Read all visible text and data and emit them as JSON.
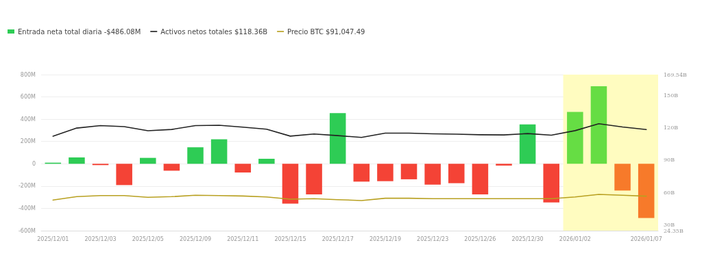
{
  "chart_data": {
    "type": "bar",
    "categories": [
      "2025/12/01",
      null,
      "2025/12/03",
      null,
      "2025/12/05",
      null,
      "2025/12/09",
      null,
      "2025/12/11",
      null,
      "2025/12/15",
      null,
      "2025/12/17",
      null,
      "2025/12/19",
      null,
      "2025/12/23",
      null,
      "2025/12/26",
      null,
      "2025/12/30",
      null,
      "2026/01/02",
      null,
      null,
      "2026/01/07"
    ],
    "series": [
      {
        "name": "Entrada neta total diaria -$486.08M",
        "color": "#2ecc55",
        "values": [
          10,
          57,
          -12,
          -191,
          53,
          -62,
          148,
          219,
          -78,
          45,
          -357,
          -275,
          455,
          -160,
          -156,
          -139,
          -187,
          -174,
          -275,
          -16,
          353,
          -347,
          466,
          695,
          -240,
          -486
        ],
        "colors": [
          "#2ecc55",
          "#2ecc55",
          "#f44336",
          "#f44336",
          "#2ecc55",
          "#f44336",
          "#2ecc55",
          "#2ecc55",
          "#f44336",
          "#2ecc55",
          "#f44336",
          "#f44336",
          "#2ecc55",
          "#f44336",
          "#f44336",
          "#f44336",
          "#f44336",
          "#f44336",
          "#f44336",
          "#f44336",
          "#2ecc55",
          "#f44336",
          "#66dd44",
          "#66dd44",
          "#f77a2a",
          "#f77a2a"
        ]
      },
      {
        "name": "Activos netos totales $118.36B",
        "type": "line",
        "axis": "y2",
        "color": "#222222",
        "values": [
          112.2,
          119.8,
          122.1,
          121.1,
          117.3,
          118.5,
          122.1,
          122.4,
          120.7,
          118.8,
          112.3,
          114.3,
          112.8,
          111.1,
          115.1,
          115.1,
          114.5,
          114.1,
          113.6,
          113.4,
          114.7,
          113.2,
          117.4,
          123.8,
          120.8,
          118.4
        ]
      },
      {
        "name": "Precio BTC $91,047.49",
        "type": "line",
        "axis": "y2",
        "color": "#b8a020",
        "values": [
          52.8,
          56.0,
          57.0,
          57.0,
          55.4,
          56.0,
          57.3,
          57.0,
          56.6,
          55.7,
          53.6,
          54.1,
          53.2,
          52.4,
          54.5,
          54.5,
          54.1,
          54.1,
          54.1,
          54.1,
          54.1,
          54.1,
          55.7,
          58.1,
          57.3,
          56.4
        ]
      }
    ],
    "ylim": [
      -600,
      800
    ],
    "yticks": [
      {
        "value": -600,
        "label": "-600M"
      },
      {
        "value": -400,
        "label": "-400M"
      },
      {
        "value": -200,
        "label": "-200M"
      },
      0,
      {
        "value": 200,
        "label": "200M"
      },
      {
        "value": 400,
        "label": "400M"
      },
      {
        "value": 600,
        "label": "600M"
      },
      {
        "value": 800,
        "label": "800M"
      }
    ],
    "y2lim": [
      24.35,
      169.54
    ],
    "y2ticks": [
      {
        "value": 24.35,
        "label": "24.35B"
      },
      {
        "value": 30,
        "label": "30B"
      },
      {
        "value": 60,
        "label": "60B"
      },
      {
        "value": 90,
        "label": "90B"
      },
      {
        "value": 120,
        "label": "120B"
      },
      {
        "value": 150,
        "label": "150B"
      },
      {
        "value": 169.54,
        "label": "169.54B"
      }
    ],
    "bands": [
      {
        "axis": "x",
        "from": "2026/01/02",
        "to": "2026/01/07",
        "color": "#fffcc0"
      }
    ],
    "grid": "y",
    "legend": "top left",
    "marker": "none",
    "line_style": "solid"
  }
}
